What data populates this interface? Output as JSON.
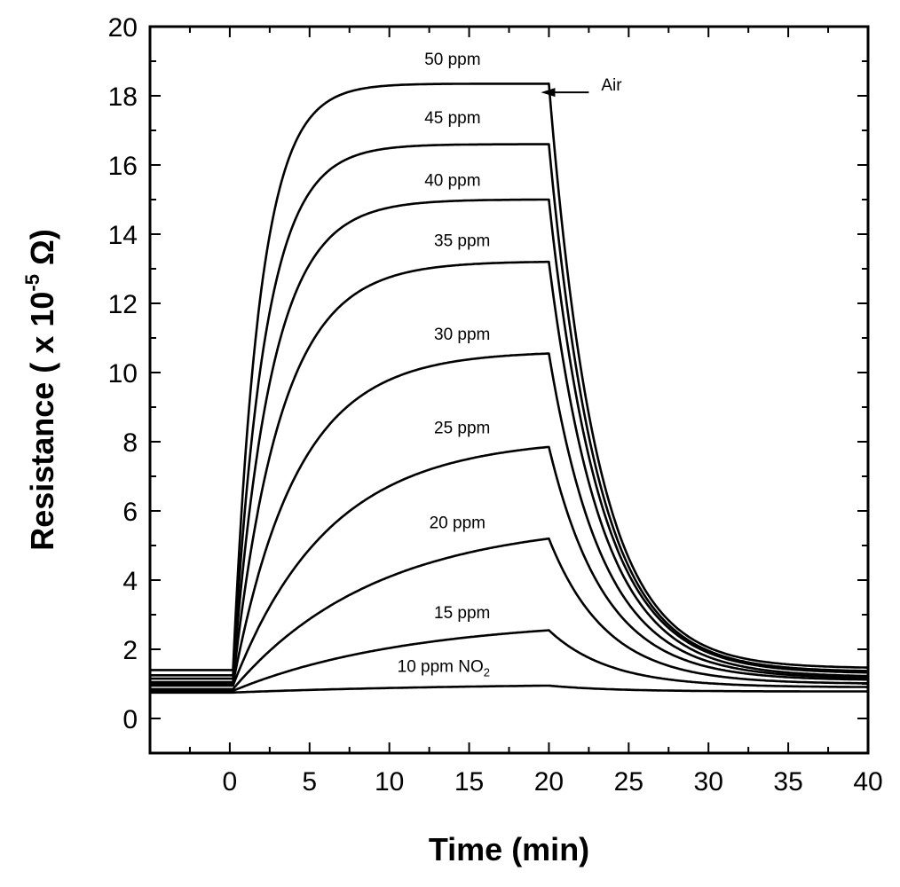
{
  "chart_data": {
    "type": "line",
    "title": "",
    "xlabel": "Time (min)",
    "ylabel": {
      "prefix": "Resistance ( x 10",
      "exponent": "-5",
      "unit": " Ω)"
    },
    "xlim": [
      -5,
      40
    ],
    "ylim": [
      -1,
      20
    ],
    "xticks": [
      0,
      5,
      10,
      15,
      20,
      25,
      30,
      35,
      40
    ],
    "yticks": [
      0,
      2,
      4,
      6,
      8,
      10,
      12,
      14,
      16,
      18,
      20
    ],
    "gas_on_time": 0.2,
    "gas_off_time": 20,
    "annotation": {
      "text": "Air",
      "arrow_from": [
        22.5,
        18.1
      ],
      "arrow_to": [
        19.5,
        18.1
      ]
    },
    "series": [
      {
        "name": "10 ppm NO2",
        "label": "10 ppm NO",
        "subscript": "2",
        "baseline": 0.75,
        "plateau": 0.95,
        "tau": 15,
        "final": 0.78,
        "decay": 4,
        "label_pos": [
          10.5,
          1.35
        ]
      },
      {
        "name": "15 ppm",
        "label": "15 ppm",
        "baseline": 0.8,
        "plateau": 2.55,
        "tau": 11,
        "final": 0.9,
        "decay": 3.8,
        "label_pos": [
          12.8,
          2.9
        ]
      },
      {
        "name": "20 ppm",
        "label": "20 ppm",
        "baseline": 0.85,
        "plateau": 5.2,
        "tau": 9,
        "final": 1.0,
        "decay": 3.6,
        "label_pos": [
          12.5,
          5.5
        ]
      },
      {
        "name": "25 ppm",
        "label": "25 ppm",
        "baseline": 0.95,
        "plateau": 7.85,
        "tau": 6,
        "final": 1.1,
        "decay": 3.5,
        "label_pos": [
          12.8,
          8.25
        ]
      },
      {
        "name": "30 ppm",
        "label": "30 ppm",
        "baseline": 1.0,
        "plateau": 10.55,
        "tau": 4,
        "final": 1.15,
        "decay": 3.4,
        "label_pos": [
          12.8,
          10.95
        ]
      },
      {
        "name": "35 ppm",
        "label": "35 ppm",
        "baseline": 1.05,
        "plateau": 13.2,
        "tau": 3,
        "final": 1.2,
        "decay": 3.3,
        "label_pos": [
          12.8,
          13.65
        ]
      },
      {
        "name": "40 ppm",
        "label": "40 ppm",
        "baseline": 1.15,
        "plateau": 15.0,
        "tau": 2.4,
        "final": 1.3,
        "decay": 3.2,
        "label_pos": [
          12.2,
          15.4
        ]
      },
      {
        "name": "45 ppm",
        "label": "45 ppm",
        "baseline": 1.25,
        "plateau": 16.6,
        "tau": 2.0,
        "final": 1.35,
        "decay": 3.1,
        "label_pos": [
          12.2,
          17.2
        ]
      },
      {
        "name": "50 ppm",
        "label": "50 ppm",
        "baseline": 1.4,
        "plateau": 18.35,
        "tau": 1.7,
        "final": 1.45,
        "decay": 3.0,
        "label_pos": [
          12.2,
          18.9
        ]
      }
    ]
  }
}
